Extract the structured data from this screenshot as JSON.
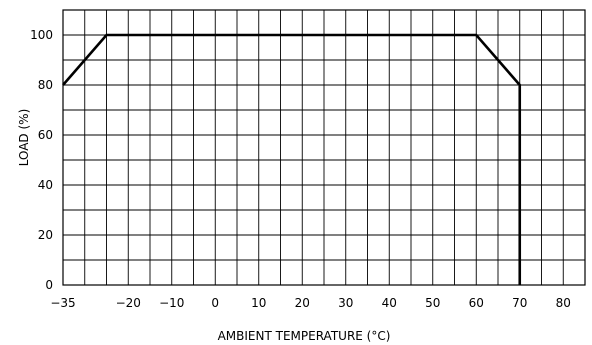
{
  "chart_data": {
    "type": "line",
    "xlabel": "AMBIENT TEMPERATURE (°C)",
    "ylabel": "LOAD (%)",
    "xlim": [
      -35,
      85
    ],
    "ylim": [
      0,
      110
    ],
    "x_ticks": [
      {
        "value": -35,
        "label": "−35"
      },
      {
        "value": -20,
        "label": "−20"
      },
      {
        "value": -10,
        "label": "−10"
      },
      {
        "value": 0,
        "label": "0"
      },
      {
        "value": 10,
        "label": "10"
      },
      {
        "value": 20,
        "label": "20"
      },
      {
        "value": 30,
        "label": "30"
      },
      {
        "value": 40,
        "label": "40"
      },
      {
        "value": 50,
        "label": "50"
      },
      {
        "value": 60,
        "label": "60"
      },
      {
        "value": 70,
        "label": "70"
      },
      {
        "value": 80,
        "label": "80"
      }
    ],
    "y_ticks": [
      {
        "value": 0,
        "label": "0"
      },
      {
        "value": 20,
        "label": "20"
      },
      {
        "value": 40,
        "label": "40"
      },
      {
        "value": 60,
        "label": "60"
      },
      {
        "value": 80,
        "label": "80"
      },
      {
        "value": 100,
        "label": "100"
      }
    ],
    "grid": true,
    "grid_x_step": 5,
    "grid_y_step": 10,
    "series": [
      {
        "x": [
          -35,
          -25,
          60,
          70,
          70
        ],
        "y": [
          80,
          100,
          100,
          80,
          0
        ]
      }
    ],
    "colors": {
      "line": "#000000",
      "grid": "#000000",
      "background": "#ffffff"
    }
  }
}
